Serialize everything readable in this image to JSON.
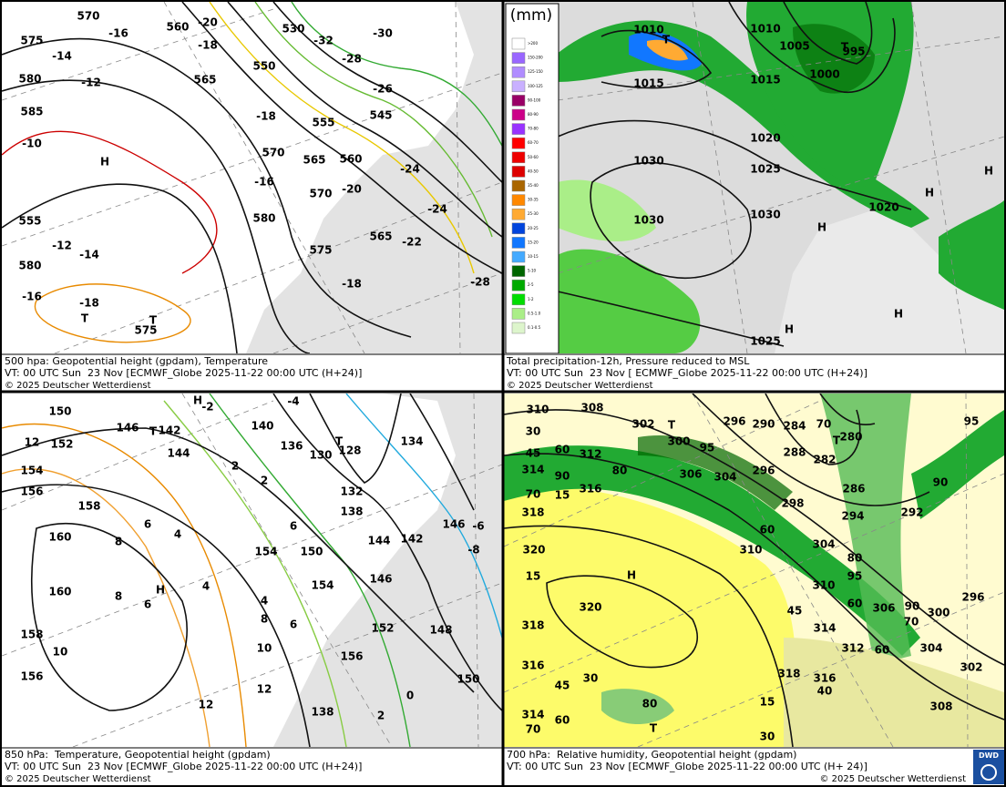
{
  "panels": [
    {
      "caption": [
        "500 hpa: Geopotential height (gpdam), Temperature",
        "VT: 00 UTC Sun  23 Nov [ECMWF_Globe 2025-11-22 00:00 UTC (H+24)]",
        "© 2025 Deutscher Wetterdienst"
      ],
      "labels": [
        "570",
        "575",
        "-16",
        "-20",
        "560",
        "-18",
        "-14",
        "580",
        "-12",
        "565",
        "585",
        "-10",
        "H",
        "550",
        "-18",
        "570",
        "565",
        "560",
        "555",
        "-20",
        "-16",
        "570",
        "580",
        "555",
        "-12",
        "-14",
        "580",
        "-16",
        "-18",
        "575",
        "-32",
        "-28",
        "-30",
        "-26",
        "545",
        "-24",
        "-24",
        "-22",
        "-18",
        "575",
        "565",
        "-28",
        "530",
        "T",
        "T"
      ]
    },
    {
      "caption": [
        "Total precipitation-12h, Pressure reduced to MSL",
        "VT: 00 UTC Sun  23 Nov [ ECMWF_Globe 2025-11-22 00:00 UTC (H+24)]",
        "© 2025 Deutscher Wetterdienst"
      ],
      "labels": [
        "1010",
        "T",
        "1015",
        "1010",
        "1005",
        "995",
        "T",
        "1000",
        "1015",
        "1020",
        "1025",
        "1030",
        "1030",
        "1030",
        "1020",
        "H",
        "H",
        "H",
        "H",
        "H",
        "1025"
      ]
    },
    {
      "caption": [
        "850 hPa:  Temperature, Geopotential height (gpdam)",
        "VT: 00 UTC Sun  23 Nov [ECMWF_Globe 2025-11-22 00:00 UTC (H+24)]",
        "© 2025 Deutscher Wetterdienst"
      ],
      "labels": [
        "150",
        "146",
        "T",
        "142",
        "H",
        "-2",
        "-4",
        "140",
        "136",
        "130",
        "T",
        "128",
        "134",
        "152",
        "12",
        "144",
        "154",
        "156",
        "158",
        "2",
        "2",
        "132",
        "138",
        "6",
        "8",
        "4",
        "6",
        "160",
        "144",
        "154",
        "150",
        "142",
        "146",
        "-6",
        "-8",
        "146",
        "154",
        "160",
        "8",
        "6",
        "H",
        "4",
        "4",
        "8",
        "6",
        "152",
        "148",
        "158",
        "10",
        "10",
        "156",
        "156",
        "150",
        "0",
        "12",
        "12",
        "138",
        "2"
      ]
    },
    {
      "caption": [
        "700 hPa:  Relative humidity, Geopotential height (gpdam)",
        "VT: 00 UTC Sun  23 Nov [ECMWF_Globe 2025-11-22 00:00 UTC (H+ 24)]",
        "© 2025 Deutscher Wetterdienst"
      ],
      "labels": [
        "310",
        "308",
        "302",
        "T",
        "300",
        "95",
        "296",
        "290",
        "284",
        "70",
        "T",
        "280",
        "95",
        "30",
        "45",
        "60",
        "312",
        "288",
        "282",
        "314",
        "90",
        "80",
        "306",
        "304",
        "296",
        "90",
        "286",
        "70",
        "15",
        "316",
        "298",
        "318",
        "294",
        "292",
        "60",
        "320",
        "304",
        "310",
        "80",
        "15",
        "H",
        "95",
        "310",
        "296",
        "60",
        "90",
        "306",
        "320",
        "45",
        "300",
        "70",
        "318",
        "314",
        "312",
        "304",
        "60",
        "316",
        "302",
        "318",
        "316",
        "30",
        "45",
        "40",
        "15",
        "80",
        "308",
        "314",
        "60",
        "T",
        "70",
        "30"
      ]
    }
  ],
  "legend": {
    "title": "(mm)",
    "entries": [
      {
        "label": ">200",
        "color": "#ffffff"
      },
      {
        "label": "150-200",
        "color": "#9966ff"
      },
      {
        "label": "125-150",
        "color": "#b08cff"
      },
      {
        "label": "100-125",
        "color": "#c9b0ff"
      },
      {
        "label": "90-100",
        "color": "#990066"
      },
      {
        "label": "80-90",
        "color": "#cc0088"
      },
      {
        "label": "70-80",
        "color": "#9933ff"
      },
      {
        "label": "60-70",
        "color": "#ff0000"
      },
      {
        "label": "50-60",
        "color": "#ee0000"
      },
      {
        "label": "40-50",
        "color": "#dd0000"
      },
      {
        "label": "35-40",
        "color": "#aa6600"
      },
      {
        "label": "30-35",
        "color": "#ff8800"
      },
      {
        "label": "25-30",
        "color": "#ffaa33"
      },
      {
        "label": "20-25",
        "color": "#0044dd"
      },
      {
        "label": "15-20",
        "color": "#1177ff"
      },
      {
        "label": "10-15",
        "color": "#44aaff"
      },
      {
        "label": "5-10",
        "color": "#006600"
      },
      {
        "label": "2-5",
        "color": "#00aa00"
      },
      {
        "label": "1-2",
        "color": "#00dd00"
      },
      {
        "label": "0.5-1.0",
        "color": "#aaee88"
      },
      {
        "label": "0.1-0.5",
        "color": "#ddf5cc"
      }
    ]
  },
  "logo": "DWD"
}
